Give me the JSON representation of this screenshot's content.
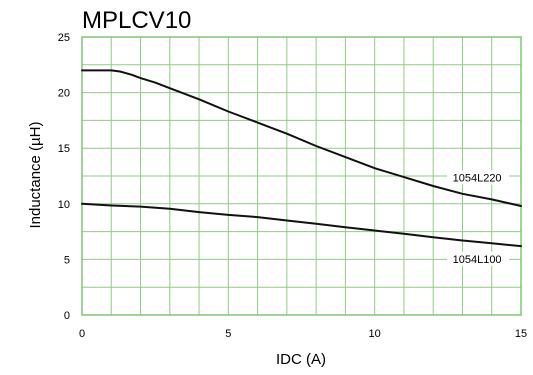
{
  "chart_data": {
    "type": "line",
    "title": "MPLCV10",
    "xlabel": "IDC (A)",
    "ylabel": "Inductance (µH)",
    "xlim": [
      0,
      15
    ],
    "ylim": [
      0,
      25
    ],
    "x_ticks": [
      0,
      5,
      10,
      15
    ],
    "y_ticks": [
      0,
      5,
      10,
      15,
      20,
      25
    ],
    "grid": true,
    "grid_x_step": 1,
    "grid_y_step": 2.5,
    "colors": {
      "grid": "#8ccf7e",
      "frame": "#7fc870",
      "series": "#111111"
    },
    "series": [
      {
        "name": "1054L220",
        "x": [
          0,
          0.5,
          1,
          1.3,
          1.7,
          2,
          2.5,
          3,
          4,
          5,
          6,
          7,
          8,
          9,
          10,
          11,
          12,
          13,
          14,
          15
        ],
        "values": [
          22.0,
          22.0,
          22.0,
          21.9,
          21.6,
          21.3,
          20.9,
          20.4,
          19.4,
          18.3,
          17.3,
          16.3,
          15.2,
          14.2,
          13.2,
          12.4,
          11.6,
          10.9,
          10.4,
          9.8
        ]
      },
      {
        "name": "1054L100",
        "x": [
          0,
          1,
          2,
          3,
          4,
          5,
          6,
          7,
          8,
          9,
          10,
          11,
          12,
          13,
          14,
          15
        ],
        "values": [
          10.0,
          9.85,
          9.75,
          9.55,
          9.25,
          9.0,
          8.8,
          8.5,
          8.2,
          7.9,
          7.6,
          7.3,
          7.0,
          6.7,
          6.45,
          6.2
        ]
      }
    ]
  }
}
